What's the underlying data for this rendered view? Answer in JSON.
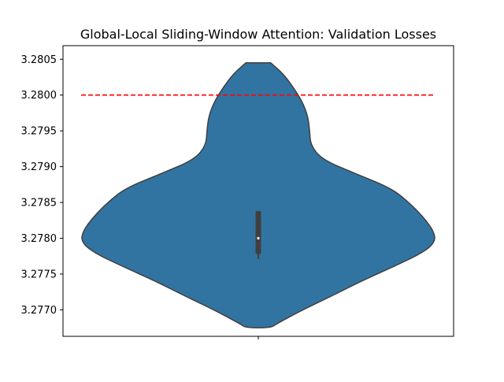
{
  "chart_data": {
    "type": "violin",
    "title": "Global-Local Sliding-Window Attention: Validation Losses",
    "xlabel": "",
    "ylabel": "",
    "ylim": [
      3.27663,
      3.28069
    ],
    "yticks": [
      3.277,
      3.2775,
      3.278,
      3.2785,
      3.279,
      3.2795,
      3.28,
      3.2805
    ],
    "ytick_labels": [
      "3.2770",
      "3.2775",
      "3.2780",
      "3.2785",
      "3.2790",
      "3.2795",
      "3.2800",
      "3.2805"
    ],
    "grid": false,
    "legend": "none",
    "colors": {
      "violin_fill": "#3274a1",
      "violin_edge": "#3f3f3f",
      "reference_line": "#ff0000",
      "median": "#ffffff"
    },
    "violin": {
      "range": [
        3.27675,
        3.28045
      ],
      "density_profile": [
        [
          3.28045,
          0.07
        ],
        [
          3.2803,
          0.14
        ],
        [
          3.2801,
          0.2
        ],
        [
          3.2799,
          0.25
        ],
        [
          3.2797,
          0.28
        ],
        [
          3.2795,
          0.29
        ],
        [
          3.2793,
          0.295
        ],
        [
          3.2791,
          0.36
        ],
        [
          3.2789,
          0.55
        ],
        [
          3.2787,
          0.75
        ],
        [
          3.2785,
          0.85
        ],
        [
          3.2783,
          0.93
        ],
        [
          3.2781,
          0.99
        ],
        [
          3.27795,
          1.0
        ],
        [
          3.2778,
          0.93
        ],
        [
          3.2776,
          0.76
        ],
        [
          3.2774,
          0.58
        ],
        [
          3.2772,
          0.42
        ],
        [
          3.277,
          0.25
        ],
        [
          3.2768,
          0.1
        ],
        [
          3.27675,
          0.07
        ]
      ],
      "box_q1": 3.27778,
      "box_median": 3.278,
      "box_q3": 3.27838,
      "whisker_low": 3.27771,
      "whisker_high": 3.27838
    },
    "reference_line": {
      "y": 3.28,
      "style": "dashed"
    }
  }
}
